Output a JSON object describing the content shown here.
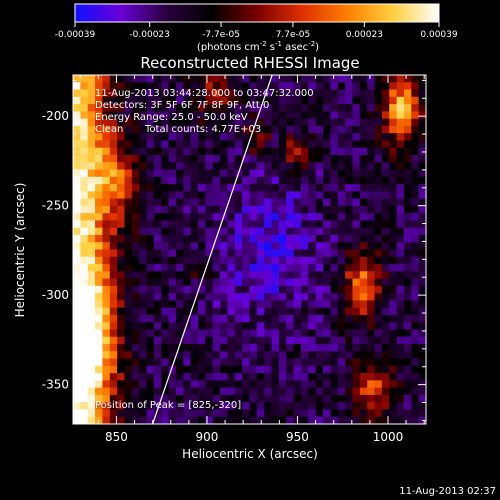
{
  "chart_data": {
    "type": "heatmap",
    "title": "Reconstructed RHESSI Image",
    "xlabel": "Heliocentric X (arcsec)",
    "ylabel": "Heliocentric Y (arcsec)",
    "xlim": [
      826,
      1021
    ],
    "ylim": [
      -372,
      -177
    ],
    "x_ticks": [
      "850",
      "900",
      "950",
      "1000"
    ],
    "y_ticks": [
      "-200",
      "-250",
      "-300",
      "-350"
    ],
    "colorbar": {
      "range": [
        -0.00039,
        0.00039
      ],
      "tick_labels": [
        "-0.00039",
        "-0.00023",
        "-7.7e-05",
        "7.7e-05",
        "0.00023",
        "0.00039"
      ],
      "units_label": "(photons cm",
      "units_exp1": "-2",
      "units_mid": " s",
      "units_exp2": "-1",
      "units_tail": " asec",
      "units_exp3": "-2",
      "units_close": ")",
      "colors": [
        "#1010ff",
        "#6a00d8",
        "#2a0040",
        "#000000",
        "#7a0000",
        "#e03000",
        "#ff8000",
        "#ffd040",
        "#ffffff"
      ]
    },
    "annotations": {
      "time_range": "11-Aug-2013 03:44:28.000 to 03:47:32.000",
      "detectors": "Detectors: 3F 5F 6F 7F 8F 9F, Att 0",
      "energy": "Energy Range: 25.0 - 50.0 keV",
      "method": "Clean",
      "counts": "Total counts: 4.77E+03",
      "peak": "Position of Peak = [825,-320]"
    },
    "limb_line": {
      "x": [
        870,
        936
      ],
      "y": [
        -372,
        -177
      ]
    }
  },
  "footer": {
    "timestamp": "11-Aug-2013 02:37"
  }
}
